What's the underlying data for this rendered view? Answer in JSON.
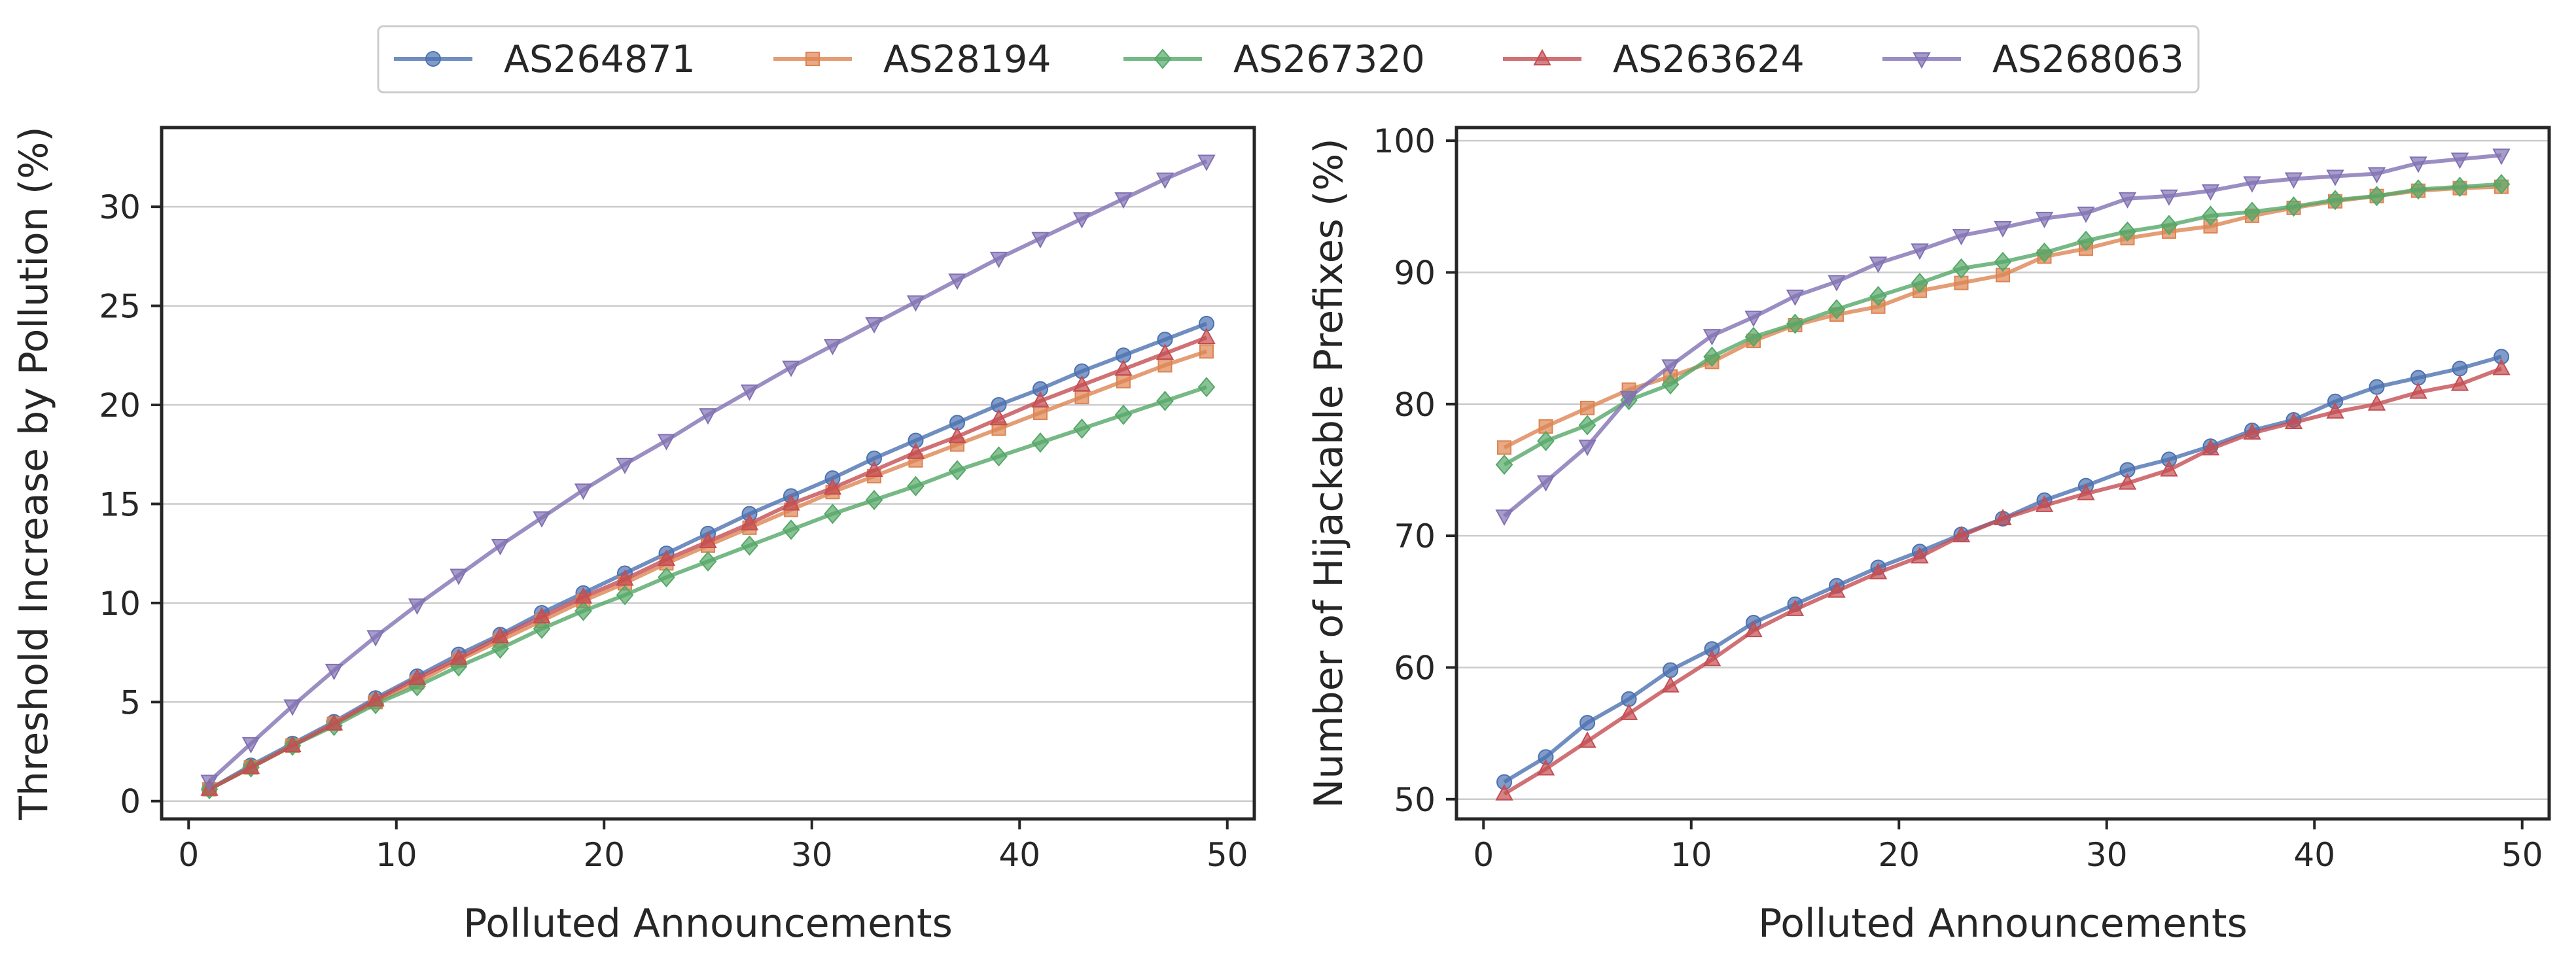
{
  "legend": {
    "entries": [
      "AS264871",
      "AS28194",
      "AS267320",
      "AS263624",
      "AS268063"
    ]
  },
  "chart_data": [
    {
      "type": "line",
      "title": "",
      "xlabel": "Polluted Announcements",
      "ylabel": "Threshold Increase by Pollution (%)",
      "xlim": [
        -1.3,
        51.3
      ],
      "ylim": [
        -0.9,
        34
      ],
      "xticks": [
        0,
        10,
        20,
        30,
        40,
        50
      ],
      "yticks": [
        0,
        5,
        10,
        15,
        20,
        25,
        30
      ],
      "grid": "horizontal",
      "x": [
        1,
        3,
        5,
        7,
        9,
        11,
        13,
        15,
        17,
        19,
        21,
        23,
        25,
        27,
        29,
        31,
        33,
        35,
        37,
        39,
        41,
        43,
        45,
        47,
        49
      ],
      "series": [
        {
          "name": "AS264871",
          "color": "#4c72b0",
          "marker": "circle",
          "values": [
            0.6,
            1.8,
            2.9,
            4.0,
            5.2,
            6.3,
            7.4,
            8.4,
            9.5,
            10.5,
            11.5,
            12.5,
            13.5,
            14.5,
            15.4,
            16.3,
            17.3,
            18.2,
            19.1,
            20.0,
            20.8,
            21.7,
            22.5,
            23.3,
            24.1
          ]
        },
        {
          "name": "AS28194",
          "color": "#dd8452",
          "marker": "square",
          "values": [
            0.6,
            1.7,
            2.8,
            3.9,
            5.0,
            6.0,
            7.1,
            8.1,
            9.1,
            10.1,
            11.0,
            12.0,
            12.9,
            13.8,
            14.7,
            15.6,
            16.4,
            17.2,
            18.0,
            18.8,
            19.6,
            20.4,
            21.2,
            22.0,
            22.7
          ]
        },
        {
          "name": "AS267320",
          "color": "#55a868",
          "marker": "diamond",
          "values": [
            0.6,
            1.7,
            2.8,
            3.8,
            4.9,
            5.8,
            6.8,
            7.7,
            8.7,
            9.6,
            10.4,
            11.3,
            12.1,
            12.9,
            13.7,
            14.5,
            15.2,
            15.9,
            16.7,
            17.4,
            18.1,
            18.8,
            19.5,
            20.2,
            20.9
          ]
        },
        {
          "name": "AS263624",
          "color": "#c44e52",
          "marker": "triangle-up",
          "values": [
            0.6,
            1.7,
            2.8,
            3.9,
            5.1,
            6.2,
            7.2,
            8.3,
            9.3,
            10.3,
            11.2,
            12.2,
            13.1,
            14.0,
            15.0,
            15.8,
            16.7,
            17.6,
            18.4,
            19.3,
            20.2,
            21.0,
            21.8,
            22.6,
            23.4
          ]
        },
        {
          "name": "AS268063",
          "color": "#8172b3",
          "marker": "triangle-down",
          "values": [
            1.0,
            2.9,
            4.8,
            6.6,
            8.3,
            9.9,
            11.4,
            12.9,
            14.3,
            15.7,
            17.0,
            18.2,
            19.5,
            20.7,
            21.9,
            23.0,
            24.1,
            25.2,
            26.3,
            27.4,
            28.4,
            29.4,
            30.4,
            31.4,
            32.3
          ]
        }
      ]
    },
    {
      "type": "line",
      "title": "",
      "xlabel": "Polluted Announcements",
      "ylabel": "Number of Hijackable Prefixes (%)",
      "xlim": [
        -1.3,
        51.3
      ],
      "ylim": [
        48.5,
        101
      ],
      "xticks": [
        0,
        10,
        20,
        30,
        40,
        50
      ],
      "yticks": [
        50,
        60,
        70,
        80,
        90,
        100
      ],
      "grid": "horizontal",
      "x": [
        1,
        3,
        5,
        7,
        9,
        11,
        13,
        15,
        17,
        19,
        21,
        23,
        25,
        27,
        29,
        31,
        33,
        35,
        37,
        39,
        41,
        43,
        45,
        47,
        49
      ],
      "series": [
        {
          "name": "AS264871",
          "color": "#4c72b0",
          "marker": "circle",
          "values": [
            51.3,
            53.2,
            55.8,
            57.6,
            59.8,
            61.4,
            63.4,
            64.8,
            66.2,
            67.6,
            68.8,
            70.1,
            71.3,
            72.7,
            73.8,
            75.0,
            75.8,
            76.8,
            78.0,
            78.8,
            80.2,
            81.3,
            82.0,
            82.7,
            83.6
          ]
        },
        {
          "name": "AS28194",
          "color": "#dd8452",
          "marker": "square",
          "values": [
            76.7,
            78.3,
            79.7,
            81.1,
            82.1,
            83.2,
            84.8,
            86.0,
            86.8,
            87.4,
            88.6,
            89.2,
            89.8,
            91.2,
            91.8,
            92.6,
            93.1,
            93.5,
            94.3,
            94.9,
            95.4,
            95.8,
            96.2,
            96.4,
            96.5
          ]
        },
        {
          "name": "AS267320",
          "color": "#55a868",
          "marker": "diamond",
          "values": [
            75.4,
            77.2,
            78.4,
            80.3,
            81.5,
            83.6,
            85.1,
            86.1,
            87.2,
            88.2,
            89.2,
            90.3,
            90.8,
            91.5,
            92.4,
            93.1,
            93.6,
            94.3,
            94.6,
            95.0,
            95.5,
            95.8,
            96.3,
            96.5,
            96.7
          ]
        },
        {
          "name": "AS263624",
          "color": "#c44e52",
          "marker": "triangle-up",
          "values": [
            50.4,
            52.3,
            54.4,
            56.5,
            58.6,
            60.6,
            62.8,
            64.4,
            65.8,
            67.2,
            68.4,
            70.0,
            71.3,
            72.3,
            73.2,
            74.0,
            75.0,
            76.6,
            77.8,
            78.6,
            79.4,
            80.0,
            80.9,
            81.5,
            82.7
          ]
        },
        {
          "name": "AS268063",
          "color": "#8172b3",
          "marker": "triangle-down",
          "values": [
            71.5,
            74.1,
            76.8,
            80.5,
            82.9,
            85.2,
            86.6,
            88.2,
            89.3,
            90.7,
            91.7,
            92.8,
            93.4,
            94.1,
            94.5,
            95.6,
            95.8,
            96.2,
            96.8,
            97.1,
            97.3,
            97.5,
            98.3,
            98.6,
            98.9
          ]
        }
      ]
    }
  ]
}
